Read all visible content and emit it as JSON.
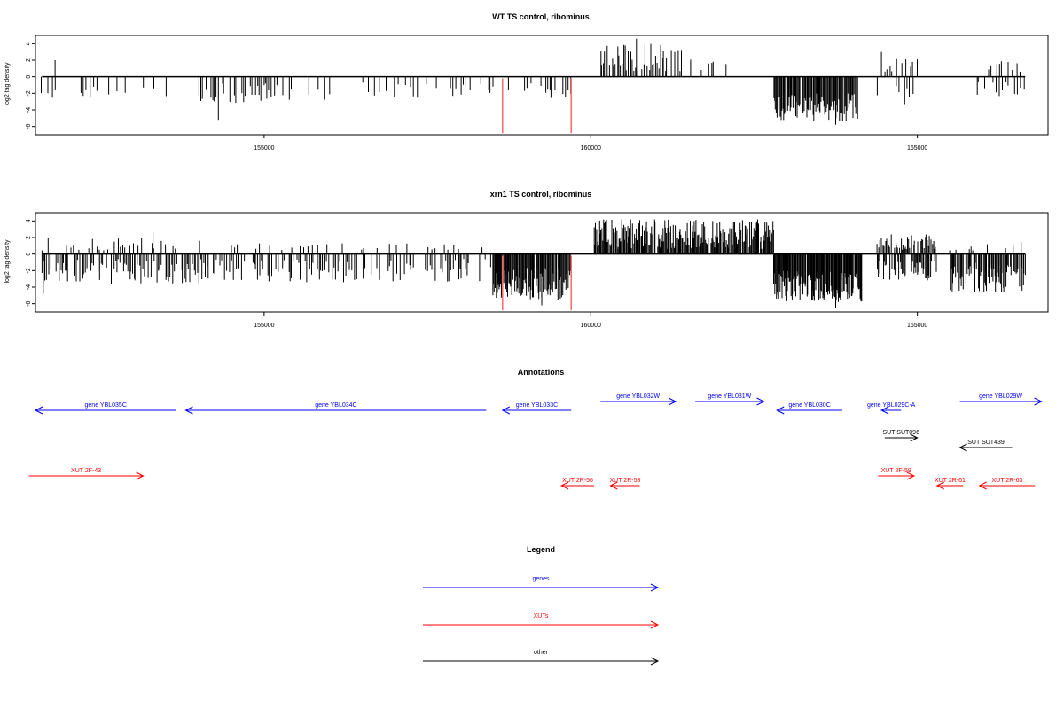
{
  "colors": {
    "density": "#000000",
    "marker": "#ff6666",
    "genes": "#0000ff",
    "xuts": "#ff0000",
    "other": "#000000",
    "frame": "#000000",
    "baseline": "#000000"
  },
  "chart_data": [
    {
      "type": "bar",
      "title": "WT TS control, ribominus",
      "ylabel": "log2 tag density",
      "xlim": [
        151500,
        167000
      ],
      "ylim": [
        -7,
        5
      ],
      "xticks": [
        155000,
        160000,
        165000
      ],
      "xtick_labels": [
        "155000",
        "160000",
        "165000"
      ],
      "yticks": [
        -6,
        -4,
        -2,
        0,
        2,
        4
      ],
      "ytick_labels": [
        "-6",
        "-4",
        "-2",
        "0",
        "2",
        "4"
      ],
      "baseline": [
        151600,
        166650
      ],
      "markers": [
        {
          "x": 158650,
          "y0": -0.2,
          "y1": -6.8
        },
        {
          "x": 159700,
          "y0": -0.2,
          "y1": -6.8
        }
      ],
      "segments": [
        {
          "x0": 151600,
          "x1": 151750,
          "step": 30,
          "sign": -1,
          "lo": 1.0,
          "hi": 2.8,
          "density": 0.5
        },
        {
          "x0": 151750,
          "x1": 154000,
          "step": 45,
          "sign": -1,
          "lo": 0.6,
          "hi": 2.6,
          "density": 0.35
        },
        {
          "x0": 154000,
          "x1": 155200,
          "step": 30,
          "sign": -1,
          "lo": 0.8,
          "hi": 3.2,
          "density": 0.6
        },
        {
          "x0": 155200,
          "x1": 157900,
          "step": 45,
          "sign": -1,
          "lo": 0.6,
          "hi": 2.8,
          "density": 0.35
        },
        {
          "x0": 157900,
          "x1": 159700,
          "step": 35,
          "sign": -1,
          "lo": 0.8,
          "hi": 2.6,
          "density": 0.5
        },
        {
          "x0": 160150,
          "x1": 161400,
          "step": 22,
          "sign": 1,
          "lo": 0.6,
          "hi": 4.0,
          "density": 0.75
        },
        {
          "x0": 161400,
          "x1": 162300,
          "step": 40,
          "sign": 1,
          "lo": 0.5,
          "hi": 2.5,
          "density": 0.45
        },
        {
          "x0": 162800,
          "x1": 164100,
          "step": 14,
          "sign": -1,
          "lo": 2.0,
          "hi": 5.4,
          "density": 0.95
        },
        {
          "x0": 164400,
          "x1": 165000,
          "step": 35,
          "sign": 1,
          "lo": 0.6,
          "hi": 2.2,
          "density": 0.5
        },
        {
          "x0": 164400,
          "x1": 165000,
          "step": 40,
          "sign": -1,
          "lo": 0.8,
          "hi": 3.6,
          "density": 0.5
        },
        {
          "x0": 165900,
          "x1": 166650,
          "step": 40,
          "sign": 1,
          "lo": 0.6,
          "hi": 2.0,
          "density": 0.45
        },
        {
          "x0": 165900,
          "x1": 166650,
          "step": 45,
          "sign": -1,
          "lo": 0.5,
          "hi": 2.6,
          "density": 0.45
        }
      ],
      "peaks": [
        {
          "x": 151800,
          "y": 2.0
        },
        {
          "x": 154300,
          "y": -5.2
        },
        {
          "x": 160700,
          "y": 4.6
        },
        {
          "x": 164450,
          "y": 3.0
        },
        {
          "x": 163750,
          "y": -5.8
        }
      ]
    },
    {
      "type": "bar",
      "title": "xrn1 TS control, ribominus",
      "ylabel": "log2 tag density",
      "xlim": [
        151500,
        167000
      ],
      "ylim": [
        -7,
        5
      ],
      "xticks": [
        155000,
        160000,
        165000
      ],
      "xtick_labels": [
        "155000",
        "160000",
        "165000"
      ],
      "yticks": [
        -6,
        -4,
        -2,
        0,
        2,
        4
      ],
      "ytick_labels": [
        "-6",
        "-4",
        "-2",
        "0",
        "2",
        "4"
      ],
      "baseline": [
        151600,
        166650
      ],
      "markers": [
        {
          "x": 158650,
          "y0": -0.2,
          "y1": -6.8
        },
        {
          "x": 159700,
          "y0": -0.2,
          "y1": -6.8
        }
      ],
      "segments": [
        {
          "x0": 151600,
          "x1": 154000,
          "step": 22,
          "sign": -1,
          "lo": 0.6,
          "hi": 3.6,
          "density": 0.75
        },
        {
          "x0": 151600,
          "x1": 154000,
          "step": 40,
          "sign": 1,
          "lo": 0.4,
          "hi": 2.0,
          "density": 0.4
        },
        {
          "x0": 154000,
          "x1": 158500,
          "step": 25,
          "sign": -1,
          "lo": 0.6,
          "hi": 3.4,
          "density": 0.6
        },
        {
          "x0": 154000,
          "x1": 158500,
          "step": 55,
          "sign": 1,
          "lo": 0.4,
          "hi": 1.3,
          "density": 0.3
        },
        {
          "x0": 158500,
          "x1": 159700,
          "step": 12,
          "sign": -1,
          "lo": 1.5,
          "hi": 5.6,
          "density": 0.95
        },
        {
          "x0": 160050,
          "x1": 162800,
          "step": 12,
          "sign": 1,
          "lo": 0.6,
          "hi": 4.2,
          "density": 0.92
        },
        {
          "x0": 162800,
          "x1": 164150,
          "step": 10,
          "sign": -1,
          "lo": 2.0,
          "hi": 5.8,
          "density": 0.97
        },
        {
          "x0": 164350,
          "x1": 165300,
          "step": 16,
          "sign": 1,
          "lo": 0.5,
          "hi": 2.4,
          "density": 0.7
        },
        {
          "x0": 164350,
          "x1": 165300,
          "step": 16,
          "sign": -1,
          "lo": 0.8,
          "hi": 3.2,
          "density": 0.75
        },
        {
          "x0": 165500,
          "x1": 166650,
          "step": 14,
          "sign": -1,
          "lo": 1.0,
          "hi": 4.6,
          "density": 0.85
        },
        {
          "x0": 165500,
          "x1": 166650,
          "step": 40,
          "sign": 1,
          "lo": 0.4,
          "hi": 1.6,
          "density": 0.4
        }
      ],
      "peaks": [
        {
          "x": 151620,
          "y": -4.8
        },
        {
          "x": 153300,
          "y": 2.6
        },
        {
          "x": 160600,
          "y": 4.6
        },
        {
          "x": 163750,
          "y": -6.5
        },
        {
          "x": 159250,
          "y": -6.2
        }
      ]
    }
  ],
  "annotations": {
    "title": "Annotations",
    "features": [
      {
        "label": "gene YBL035C",
        "type": "gene",
        "strand": "-",
        "start": 151500,
        "end": 153650,
        "row": "top"
      },
      {
        "label": "gene YBL034C",
        "type": "gene",
        "strand": "-",
        "start": 153800,
        "end": 158400,
        "row": "top"
      },
      {
        "label": "gene YBL033C",
        "type": "gene",
        "strand": "-",
        "start": 158650,
        "end": 159700,
        "row": "top"
      },
      {
        "label": "gene YBL032W",
        "type": "gene",
        "strand": "+",
        "start": 160150,
        "end": 161300,
        "row": "upper"
      },
      {
        "label": "gene YBL031W",
        "type": "gene",
        "strand": "+",
        "start": 161600,
        "end": 162650,
        "row": "upper"
      },
      {
        "label": "gene YBL030C",
        "type": "gene",
        "strand": "-",
        "start": 162850,
        "end": 163850,
        "row": "top"
      },
      {
        "label": "gene YBL029C-A",
        "type": "gene",
        "strand": "-",
        "start": 164450,
        "end": 164750,
        "row": "top"
      },
      {
        "label": "gene YBL029W",
        "type": "gene",
        "strand": "+",
        "start": 165650,
        "end": 166900,
        "row": "upper"
      },
      {
        "label": "SUT SUT096",
        "type": "other",
        "strand": "+",
        "start": 164500,
        "end": 165000,
        "row": "mid"
      },
      {
        "label": "SUT SUT439",
        "type": "other",
        "strand": "-",
        "start": 165650,
        "end": 166450,
        "row": "mid2"
      },
      {
        "label": "XUT 2F-43",
        "type": "xut",
        "strand": "+",
        "start": 151400,
        "end": 153150,
        "row": "low"
      },
      {
        "label": "XUT 2R-56",
        "type": "xut",
        "strand": "-",
        "start": 159550,
        "end": 160050,
        "row": "bottom"
      },
      {
        "label": "XUT 2R-58",
        "type": "xut",
        "strand": "-",
        "start": 160300,
        "end": 160750,
        "row": "bottom"
      },
      {
        "label": "XUT 2F-59",
        "type": "xut",
        "strand": "+",
        "start": 164400,
        "end": 164950,
        "row": "low"
      },
      {
        "label": "XUT 2R-61",
        "type": "xut",
        "strand": "-",
        "start": 165300,
        "end": 165700,
        "row": "bottom"
      },
      {
        "label": "XUT 2R-63",
        "type": "xut",
        "strand": "-",
        "start": 165950,
        "end": 166800,
        "row": "bottom"
      }
    ]
  },
  "legend": {
    "title": "Legend",
    "items": [
      {
        "label": "genes",
        "type": "gene"
      },
      {
        "label": "XUTs",
        "type": "xut"
      },
      {
        "label": "other",
        "type": "other"
      }
    ]
  }
}
